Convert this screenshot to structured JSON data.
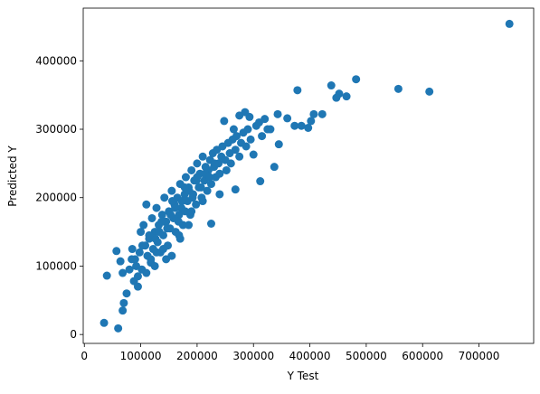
{
  "chart_data": {
    "type": "scatter",
    "xlabel": "Y Test",
    "ylabel": "Predicted Y",
    "color": "#1f77b4",
    "xlim": [
      -2000,
      797000
    ],
    "ylim": [
      -13000,
      477000
    ],
    "xticks": [
      0,
      100000,
      200000,
      300000,
      400000,
      500000,
      600000,
      700000
    ],
    "yticks": [
      0,
      100000,
      200000,
      300000,
      400000
    ],
    "x": [
      754000,
      612000,
      557000,
      482000,
      438000,
      465000,
      452000,
      447000,
      378000,
      407000,
      422000,
      397000,
      402000,
      373000,
      360000,
      385000,
      343000,
      330000,
      312000,
      337000,
      345000,
      293000,
      285000,
      275000,
      248000,
      265000,
      300000,
      268000,
      240000,
      225000,
      40000,
      35000,
      57000,
      60000,
      68000,
      70000,
      64000,
      68000,
      75000,
      80000,
      85000,
      88000,
      90000,
      92000,
      95000,
      98000,
      100000,
      102000,
      105000,
      108000,
      110000,
      112000,
      115000,
      118000,
      120000,
      122000,
      125000,
      128000,
      130000,
      132000,
      135000,
      138000,
      140000,
      142000,
      145000,
      148000,
      150000,
      152000,
      155000,
      158000,
      160000,
      162000,
      165000,
      168000,
      170000,
      172000,
      175000,
      178000,
      180000,
      183000,
      185000,
      188000,
      190000,
      193000,
      195000,
      198000,
      200000,
      203000,
      205000,
      208000,
      210000,
      213000,
      215000,
      218000,
      220000,
      223000,
      225000,
      228000,
      230000,
      233000,
      235000,
      238000,
      240000,
      243000,
      245000,
      250000,
      252000,
      255000,
      258000,
      260000,
      263000,
      268000,
      270000,
      275000,
      278000,
      282000,
      287000,
      290000,
      295000,
      305000,
      310000,
      315000,
      320000,
      325000,
      103000,
      118000,
      126000,
      133000,
      141000,
      147000,
      153000,
      161000,
      167000,
      173000,
      179000,
      186000,
      192000,
      199000,
      207000,
      214000,
      222000,
      231000,
      115000,
      128000,
      137000,
      145000,
      156000,
      168000,
      178000,
      190000,
      200000,
      210000,
      84000,
      95000,
      110000,
      125000,
      140000,
      155000,
      170000,
      185000
    ],
    "values": [
      454000,
      355000,
      359000,
      373000,
      364000,
      348000,
      352000,
      346000,
      357000,
      322000,
      322000,
      302000,
      312000,
      305000,
      316000,
      305000,
      322000,
      300000,
      224000,
      245000,
      278000,
      318000,
      325000,
      320000,
      312000,
      300000,
      263000,
      212000,
      205000,
      162000,
      86000,
      17000,
      122000,
      9000,
      35000,
      46000,
      107000,
      90000,
      60000,
      95000,
      125000,
      78000,
      110000,
      100000,
      85000,
      120000,
      150000,
      95000,
      160000,
      130000,
      190000,
      115000,
      140000,
      105000,
      170000,
      125000,
      150000,
      185000,
      135000,
      160000,
      120000,
      175000,
      145000,
      200000,
      165000,
      130000,
      180000,
      155000,
      210000,
      170000,
      190000,
      150000,
      200000,
      175000,
      220000,
      185000,
      160000,
      205000,
      230000,
      195000,
      215000,
      175000,
      240000,
      205000,
      225000,
      190000,
      250000,
      215000,
      235000,
      200000,
      260000,
      225000,
      245000,
      210000,
      240000,
      255000,
      220000,
      265000,
      245000,
      230000,
      270000,
      250000,
      235000,
      260000,
      275000,
      255000,
      240000,
      280000,
      265000,
      250000,
      285000,
      270000,
      290000,
      260000,
      280000,
      295000,
      275000,
      300000,
      285000,
      305000,
      310000,
      290000,
      315000,
      300000,
      130000,
      110000,
      140000,
      150000,
      165000,
      155000,
      175000,
      185000,
      165000,
      195000,
      180000,
      210000,
      200000,
      225000,
      215000,
      235000,
      230000,
      250000,
      145000,
      120000,
      165000,
      110000,
      195000,
      145000,
      215000,
      180000,
      230000,
      195000,
      110000,
      70000,
      90000,
      100000,
      125000,
      115000,
      140000,
      160000
    ]
  }
}
